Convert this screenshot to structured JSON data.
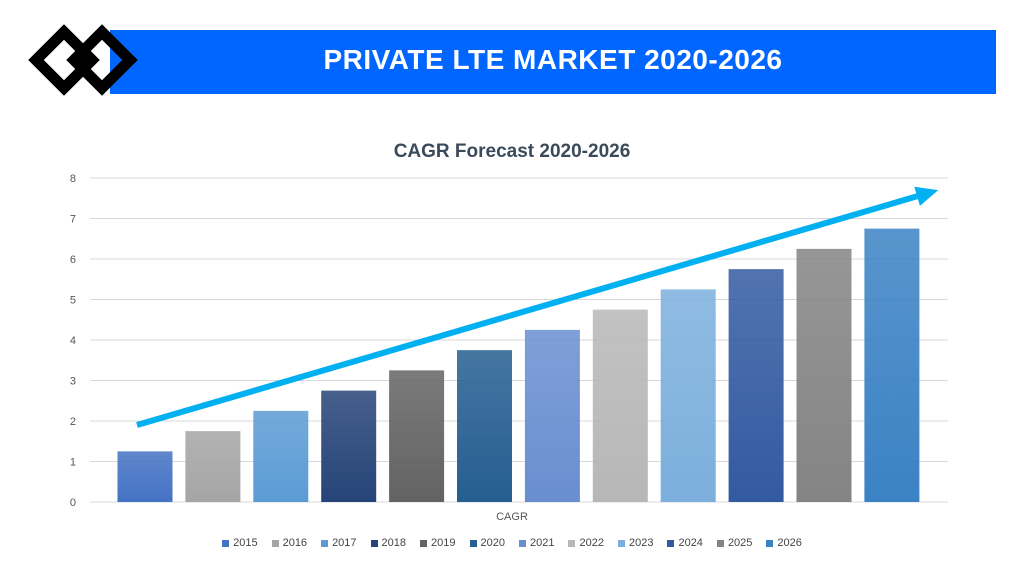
{
  "header": {
    "title": "PRIVATE LTE MARKET 2020-2026"
  },
  "chart_data": {
    "type": "bar",
    "title": "CAGR Forecast 2020-2026",
    "xlabel": "CAGR",
    "ylabel": "",
    "ylim": [
      0,
      8
    ],
    "yticks": [
      0,
      1,
      2,
      3,
      4,
      5,
      6,
      7,
      8
    ],
    "grid": true,
    "legend_position": "bottom",
    "categories": [
      "CAGR"
    ],
    "series": [
      {
        "name": "2015",
        "values": [
          1.25
        ],
        "color": "#4472c4"
      },
      {
        "name": "2016",
        "values": [
          1.75
        ],
        "color": "#a5a5a5"
      },
      {
        "name": "2017",
        "values": [
          2.25
        ],
        "color": "#5b9bd5"
      },
      {
        "name": "2018",
        "values": [
          2.75
        ],
        "color": "#264478"
      },
      {
        "name": "2019",
        "values": [
          3.25
        ],
        "color": "#636363"
      },
      {
        "name": "2020",
        "values": [
          3.75
        ],
        "color": "#255e91"
      },
      {
        "name": "2021",
        "values": [
          4.25
        ],
        "color": "#698ed0"
      },
      {
        "name": "2022",
        "values": [
          4.75
        ],
        "color": "#b7b7b7"
      },
      {
        "name": "2023",
        "values": [
          5.25
        ],
        "color": "#7cafdd"
      },
      {
        "name": "2024",
        "values": [
          5.75
        ],
        "color": "#335aa1"
      },
      {
        "name": "2025",
        "values": [
          6.25
        ],
        "color": "#848484"
      },
      {
        "name": "2026",
        "values": [
          6.75
        ],
        "color": "#3b82c4"
      }
    ],
    "annotations": [
      {
        "type": "trend-arrow",
        "color": "#00b0f0",
        "from": [
          0,
          1.9
        ],
        "to": [
          11.8,
          7.8
        ]
      }
    ]
  }
}
